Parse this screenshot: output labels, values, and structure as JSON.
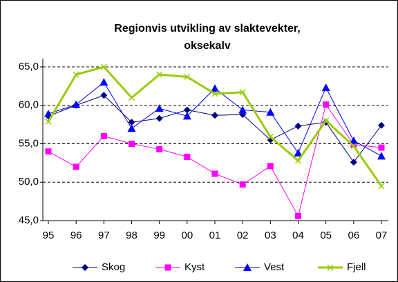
{
  "chart_data": {
    "type": "line",
    "title": [
      "Regionvis utvikling av slaktevekter,",
      "oksekalv"
    ],
    "categories": [
      "95",
      "96",
      "97",
      "98",
      "99",
      "00",
      "01",
      "02",
      "03",
      "04",
      "05",
      "06",
      "07"
    ],
    "series": [
      {
        "name": "Skog",
        "color": "#000080",
        "marker": "diamond",
        "values": [
          58.6,
          60.0,
          61.3,
          57.8,
          58.3,
          59.4,
          58.7,
          58.8,
          55.5,
          57.3,
          57.8,
          52.6,
          57.4
        ]
      },
      {
        "name": "Kyst",
        "color": "#ff00ff",
        "marker": "square",
        "values": [
          54.0,
          52.0,
          56.0,
          55.0,
          54.3,
          53.3,
          51.1,
          49.7,
          52.1,
          45.6,
          60.1,
          54.9,
          54.5
        ]
      },
      {
        "name": "Vest",
        "color": "#0000ff",
        "marker": "triangle",
        "values": [
          58.9,
          60.1,
          63.0,
          57.0,
          59.6,
          58.6,
          62.2,
          59.4,
          59.1,
          53.8,
          62.3,
          55.4,
          53.4
        ]
      },
      {
        "name": "Fjell",
        "color": "#99cc00",
        "marker": "x",
        "values": [
          57.9,
          64.0,
          65.0,
          61.0,
          64.0,
          63.7,
          61.5,
          61.7,
          55.9,
          52.8,
          58.0,
          54.7,
          49.5
        ]
      }
    ],
    "ylim": [
      45,
      65
    ],
    "yticks": [
      {
        "value": 45,
        "label": "45,0"
      },
      {
        "value": 50,
        "label": "50,0"
      },
      {
        "value": 55,
        "label": "55,0"
      },
      {
        "value": 60,
        "label": "60,0"
      },
      {
        "value": 65,
        "label": "65,0"
      }
    ],
    "grid": true,
    "legend": "bottom"
  }
}
